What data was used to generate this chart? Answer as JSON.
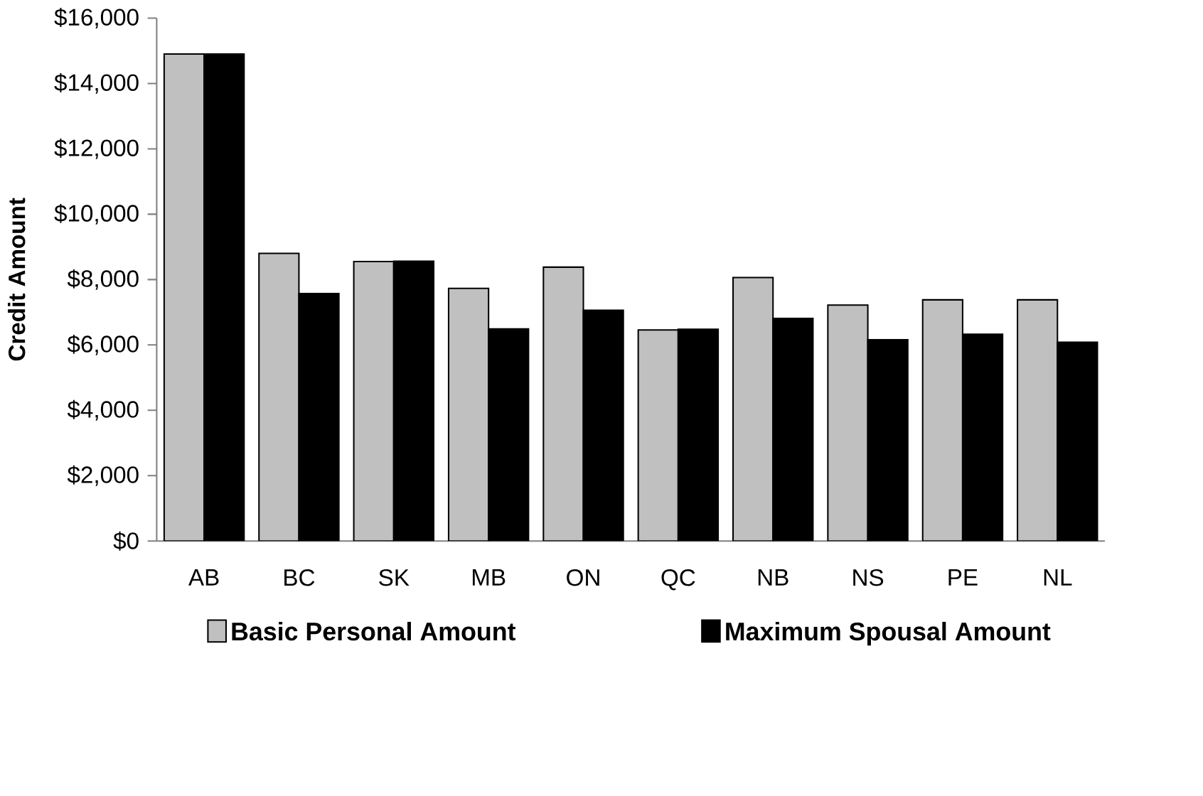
{
  "chart_data": {
    "type": "bar",
    "ylabel": "Credit  Amount",
    "categories": [
      "AB",
      "BC",
      "SK",
      "MB",
      "ON",
      "QC",
      "NB",
      "NS",
      "PE",
      "NL"
    ],
    "series": [
      {
        "name": "Basic Personal Amount",
        "color": "#c0c0c0",
        "values": [
          14900,
          8800,
          8550,
          7730,
          8380,
          6460,
          8060,
          7220,
          7380,
          7380
        ]
      },
      {
        "name": "Maximum Spousal Amount",
        "color": "#000000",
        "values": [
          14900,
          7570,
          8560,
          6490,
          7060,
          6480,
          6810,
          6160,
          6330,
          6080
        ]
      }
    ],
    "ylim": [
      0,
      16000
    ],
    "yticks": [
      {
        "value": 0,
        "label": "$0"
      },
      {
        "value": 2000,
        "label": "$2,000"
      },
      {
        "value": 4000,
        "label": "$4,000"
      },
      {
        "value": 6000,
        "label": "$6,000"
      },
      {
        "value": 8000,
        "label": "$8,000"
      },
      {
        "value": 10000,
        "label": "$10,000"
      },
      {
        "value": 12000,
        "label": "$12,000"
      },
      {
        "value": 14000,
        "label": "$14,000"
      },
      {
        "value": 16000,
        "label": "$16,000"
      }
    ],
    "grid": false,
    "legend": "bottom"
  }
}
